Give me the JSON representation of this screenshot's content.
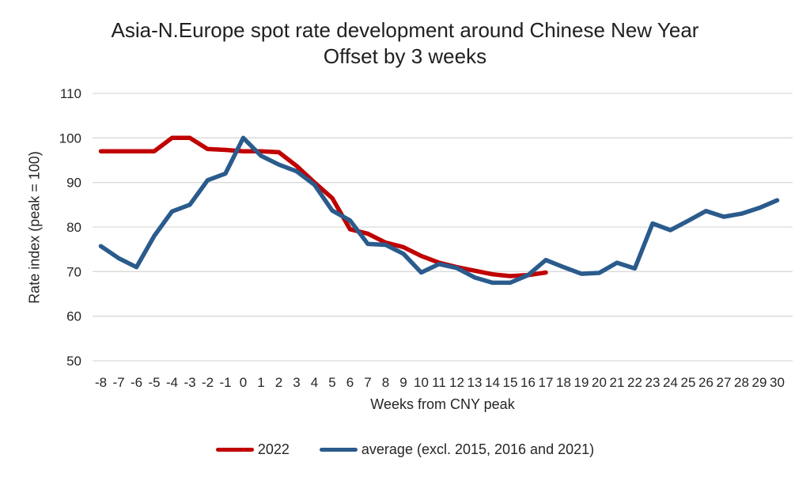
{
  "title": {
    "line1": "Asia-N.Europe spot rate development around Chinese New Year",
    "line2": "Offset by 3 weeks"
  },
  "y_axis": {
    "title": "Rate index (peak = 100)",
    "ticks": [
      110,
      100,
      90,
      80,
      70,
      60,
      50
    ],
    "min": 50,
    "max": 110
  },
  "x_axis": {
    "title": "Weeks from CNY peak",
    "ticks": [
      -8,
      -7,
      -6,
      -5,
      -4,
      -3,
      -2,
      -1,
      0,
      1,
      2,
      3,
      4,
      5,
      6,
      7,
      8,
      9,
      10,
      11,
      12,
      13,
      14,
      15,
      16,
      17,
      18,
      19,
      20,
      21,
      22,
      23,
      24,
      25,
      26,
      27,
      28,
      29,
      30
    ]
  },
  "legend": [
    {
      "label": "2022",
      "color": "#C00000"
    },
    {
      "label": "average (excl. 2015, 2016 and 2021)",
      "color": "#2A5B8C"
    }
  ],
  "colors": {
    "red_series": "#C00000",
    "blue_series": "#2A5B8C",
    "gridline": "#D9D9D9",
    "text": "#262626"
  },
  "chart_data": {
    "type": "line",
    "title": "Asia-N.Europe spot rate development around Chinese New Year — Offset by 3 weeks",
    "xlabel": "Weeks from CNY peak",
    "ylabel": "Rate index (peak = 100)",
    "ylim": [
      50,
      110
    ],
    "grid": "horizontal",
    "legend_position": "bottom",
    "x": [
      -8,
      -7,
      -6,
      -5,
      -4,
      -3,
      -2,
      -1,
      0,
      1,
      2,
      3,
      4,
      5,
      6,
      7,
      8,
      9,
      10,
      11,
      12,
      13,
      14,
      15,
      16,
      17,
      18,
      19,
      20,
      21,
      22,
      23,
      24,
      25,
      26,
      27,
      28,
      29,
      30
    ],
    "series": [
      {
        "name": "2022",
        "color": "#C00000",
        "values": [
          97,
          97,
          97,
          97,
          100,
          100,
          97.5,
          97.3,
          97,
          97,
          96.8,
          93.7,
          90,
          86.5,
          79.5,
          78.5,
          76.5,
          75.5,
          73.5,
          72,
          71,
          70.2,
          69.4,
          69,
          69.2,
          69.8,
          null,
          null,
          null,
          null,
          null,
          null,
          null,
          null,
          null,
          null,
          null,
          null,
          null
        ]
      },
      {
        "name": "average (excl. 2015, 2016 and 2021)",
        "color": "#2A5B8C",
        "values": [
          75.7,
          73,
          71,
          78,
          83.5,
          85,
          90.5,
          92,
          100,
          96,
          94,
          92.5,
          89.5,
          83.7,
          81.5,
          76.2,
          76,
          74,
          69.8,
          71.7,
          70.8,
          68.7,
          67.5,
          67.5,
          69.2,
          72.6,
          71,
          69.5,
          69.7,
          72,
          70.7,
          80.8,
          79.3,
          81.4,
          83.6,
          82.3,
          83,
          84.3,
          86
        ]
      }
    ]
  }
}
